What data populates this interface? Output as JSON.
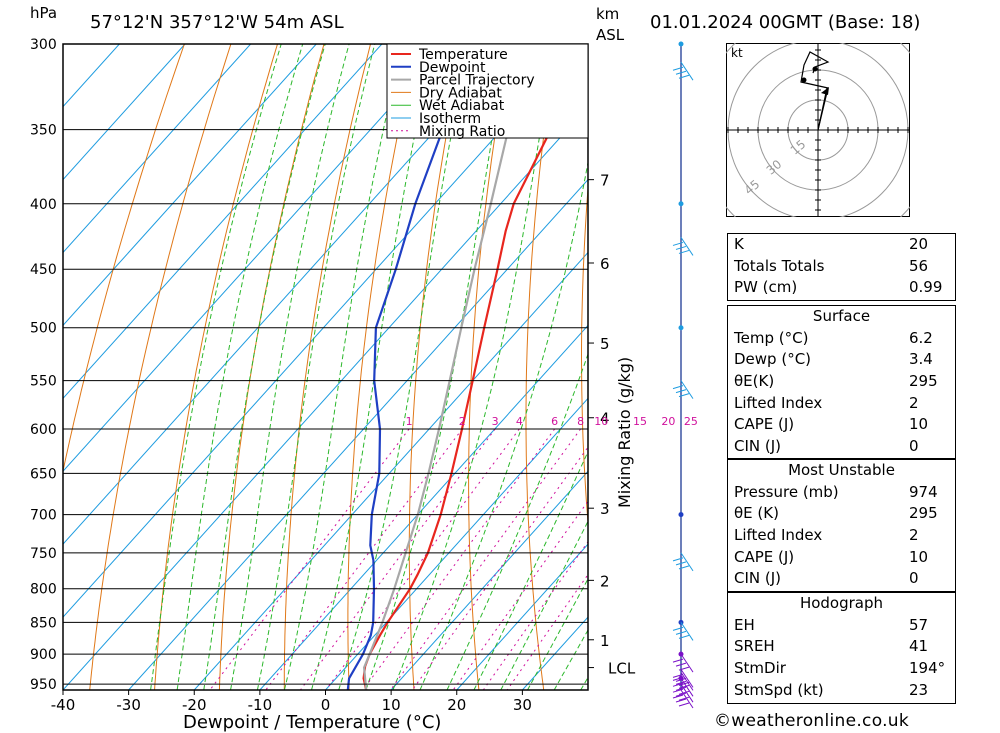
{
  "header": {
    "left_unit": "hPa",
    "location": "57°12'N  357°12'W  54m  ASL",
    "km_unit": "km",
    "asl_unit": "ASL",
    "datetime": "01.01.2024  00GMT  (Base: 18)"
  },
  "chart_data": {
    "type": "line",
    "xlabel": "Dewpoint / Temperature (°C)",
    "ylabel_right": "Mixing Ratio (g/kg)",
    "x_ticks": [
      -40,
      -30,
      -20,
      -10,
      0,
      10,
      20,
      30
    ],
    "xlim": [
      -40,
      40
    ],
    "y_scale": "log",
    "ylim_hpa": [
      300,
      960
    ],
    "pressure_levels": [
      300,
      350,
      400,
      450,
      500,
      550,
      600,
      650,
      700,
      750,
      800,
      850,
      900,
      950
    ],
    "km_ticks": [
      {
        "label": "1",
        "p": 877
      },
      {
        "label": "2",
        "p": 788
      },
      {
        "label": "3",
        "p": 692
      },
      {
        "label": "4",
        "p": 588
      },
      {
        "label": "5",
        "p": 514
      },
      {
        "label": "6",
        "p": 445
      },
      {
        "label": "7",
        "p": 383
      }
    ],
    "lcl": {
      "label": "LCL",
      "p": 922
    },
    "mixing_ratio_labels": [
      "1",
      "2",
      "3",
      "4",
      "6",
      "8",
      "10",
      "15",
      "20",
      "25"
    ],
    "legend": [
      "Temperature",
      "Dewpoint",
      "Parcel Trajectory",
      "Dry Adiabat",
      "Wet Adiabat",
      "Isotherm",
      "Mixing Ratio"
    ],
    "colors": {
      "temperature": "#e8261e",
      "dewpoint": "#1f3fc4",
      "parcel": "#a8a8a8",
      "dry_adiabat": "#e07818",
      "wet_adiabat": "#2cb82c",
      "isotherm": "#1e9ce0",
      "mixing_ratio": "#d0109c",
      "wind": "#1e9ce0"
    },
    "series": [
      {
        "name": "Temperature",
        "values": [
          [
            960,
            6.2
          ],
          [
            940,
            4.2
          ],
          [
            920,
            2.8
          ],
          [
            900,
            1.8
          ],
          [
            870,
            0.8
          ],
          [
            850,
            0.2
          ],
          [
            800,
            -1.0
          ],
          [
            780,
            -1.8
          ],
          [
            750,
            -3.2
          ],
          [
            700,
            -6.5
          ],
          [
            650,
            -10.5
          ],
          [
            600,
            -15.0
          ],
          [
            550,
            -20.0
          ],
          [
            500,
            -25.5
          ],
          [
            450,
            -31.5
          ],
          [
            420,
            -35.5
          ],
          [
            400,
            -38.0
          ],
          [
            350,
            -42.5
          ],
          [
            320,
            -44.5
          ],
          [
            300,
            -46.0
          ]
        ]
      },
      {
        "name": "Dewpoint",
        "values": [
          [
            960,
            3.4
          ],
          [
            940,
            2.0
          ],
          [
            900,
            0.8
          ],
          [
            870,
            -0.6
          ],
          [
            850,
            -2.0
          ],
          [
            800,
            -6.5
          ],
          [
            760,
            -10.5
          ],
          [
            740,
            -13.0
          ],
          [
            700,
            -17.0
          ],
          [
            650,
            -21.5
          ],
          [
            600,
            -27.5
          ],
          [
            550,
            -35.0
          ],
          [
            500,
            -42.0
          ],
          [
            450,
            -47.0
          ],
          [
            400,
            -53.0
          ],
          [
            350,
            -59.0
          ],
          [
            300,
            -65.0
          ]
        ]
      },
      {
        "name": "Parcel Trajectory",
        "values": [
          [
            960,
            6.2
          ],
          [
            922,
            2.8
          ],
          [
            900,
            1.8
          ],
          [
            850,
            -0.6
          ],
          [
            800,
            -3.4
          ],
          [
            750,
            -6.6
          ],
          [
            700,
            -10.0
          ],
          [
            650,
            -14.0
          ],
          [
            600,
            -18.5
          ],
          [
            550,
            -23.5
          ],
          [
            500,
            -29.0
          ],
          [
            450,
            -35.0
          ],
          [
            400,
            -41.5
          ],
          [
            350,
            -49.0
          ],
          [
            300,
            -57.0
          ]
        ]
      }
    ],
    "wind_levels_hpa": [
      960,
      950,
      940,
      930,
      925,
      900,
      850,
      750,
      550,
      425,
      310
    ]
  },
  "hodograph": {
    "unit": "kt",
    "ring_labels": [
      "15",
      "30",
      "45"
    ]
  },
  "indices": {
    "k": {
      "label": "K",
      "value": "20"
    },
    "tt": {
      "label": "Totals Totals",
      "value": "56"
    },
    "pw": {
      "label": "PW (cm)",
      "value": "0.99"
    }
  },
  "surface": {
    "title": "Surface",
    "temp": {
      "label": "Temp (°C)",
      "value": "6.2"
    },
    "dewp": {
      "label": "Dewp (°C)",
      "value": "3.4"
    },
    "thetae": {
      "label": "θE(K)",
      "value": "295"
    },
    "li": {
      "label": "Lifted Index",
      "value": "2"
    },
    "cape": {
      "label": "CAPE (J)",
      "value": "10"
    },
    "cin": {
      "label": "CIN (J)",
      "value": "0"
    }
  },
  "most_unstable": {
    "title": "Most Unstable",
    "pressure": {
      "label": "Pressure (mb)",
      "value": "974"
    },
    "thetae": {
      "label": "θE (K)",
      "value": "295"
    },
    "li": {
      "label": "Lifted Index",
      "value": "2"
    },
    "cape": {
      "label": "CAPE (J)",
      "value": "10"
    },
    "cin": {
      "label": "CIN (J)",
      "value": "0"
    }
  },
  "hodograph_table": {
    "title": "Hodograph",
    "eh": {
      "label": "EH",
      "value": "57"
    },
    "sreh": {
      "label": "SREH",
      "value": "41"
    },
    "stmdir": {
      "label": "StmDir",
      "value": "194°"
    },
    "stmspd": {
      "label": "StmSpd (kt)",
      "value": "23"
    }
  },
  "credit": "©weatheronline.co.uk"
}
